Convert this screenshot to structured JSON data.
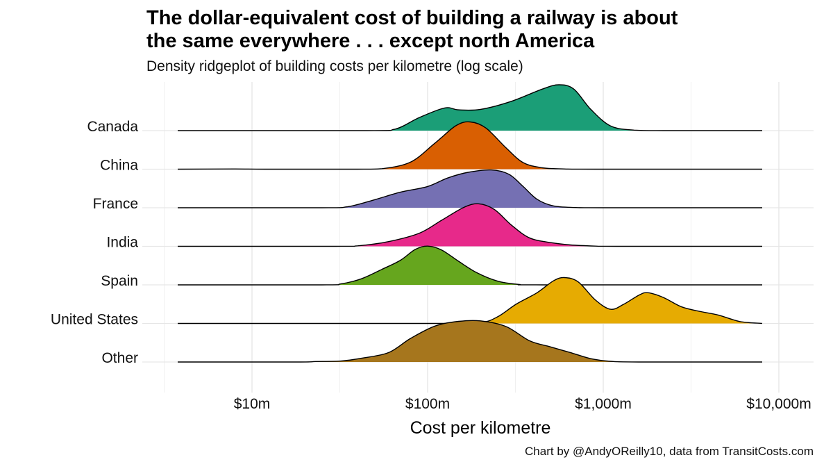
{
  "header": {
    "title_line1": "The dollar-equivalent cost of building a railway is about",
    "title_line2": "the same everywhere . . . except north America",
    "subtitle": "Density ridgeplot of building costs per kilometre (log scale)"
  },
  "caption": "Chart by @AndyOReilly10, data from TransitCosts.com",
  "chart_data": {
    "type": "area",
    "chart_subtype": "density ridgeplot",
    "xlabel": "Cost per kilometre",
    "x_scale": "log10",
    "x_unit": "$ millions per km",
    "xlim": [
      2.7,
      15000
    ],
    "x_ticks": [
      10,
      100,
      1000,
      10000
    ],
    "x_tick_labels": [
      "$10m",
      "$100m",
      "$1,000m",
      "$10,000m"
    ],
    "grid": true,
    "legend": "none",
    "series": [
      {
        "name": "Canada",
        "color": "#1b9e77",
        "points": [
          [
            4,
            0
          ],
          [
            45,
            0
          ],
          [
            65,
            0.03
          ],
          [
            90,
            0.28
          ],
          [
            125,
            0.48
          ],
          [
            150,
            0.44
          ],
          [
            200,
            0.45
          ],
          [
            300,
            0.62
          ],
          [
            450,
            0.88
          ],
          [
            560,
            0.97
          ],
          [
            680,
            0.88
          ],
          [
            850,
            0.45
          ],
          [
            1100,
            0.1
          ],
          [
            1500,
            0.01
          ],
          [
            2200,
            0
          ],
          [
            8000,
            0
          ]
        ]
      },
      {
        "name": "China",
        "color": "#d95f02",
        "points": [
          [
            4,
            0
          ],
          [
            8,
            0.005
          ],
          [
            12,
            0
          ],
          [
            40,
            0
          ],
          [
            55,
            0.01
          ],
          [
            80,
            0.15
          ],
          [
            110,
            0.55
          ],
          [
            145,
            0.92
          ],
          [
            175,
            1.0
          ],
          [
            215,
            0.87
          ],
          [
            280,
            0.45
          ],
          [
            350,
            0.14
          ],
          [
            450,
            0.03
          ],
          [
            600,
            0.005
          ],
          [
            900,
            0
          ],
          [
            8000,
            0
          ]
        ]
      },
      {
        "name": "France",
        "color": "#7570b3",
        "points": [
          [
            4,
            0
          ],
          [
            25,
            0
          ],
          [
            35,
            0.02
          ],
          [
            50,
            0.17
          ],
          [
            70,
            0.33
          ],
          [
            100,
            0.45
          ],
          [
            130,
            0.63
          ],
          [
            170,
            0.75
          ],
          [
            230,
            0.8
          ],
          [
            290,
            0.71
          ],
          [
            350,
            0.45
          ],
          [
            420,
            0.18
          ],
          [
            520,
            0.04
          ],
          [
            700,
            0.005
          ],
          [
            1000,
            0
          ],
          [
            8000,
            0
          ]
        ]
      },
      {
        "name": "India",
        "color": "#e7298a",
        "points": [
          [
            4,
            0
          ],
          [
            30,
            0
          ],
          [
            40,
            0.01
          ],
          [
            60,
            0.1
          ],
          [
            90,
            0.28
          ],
          [
            120,
            0.55
          ],
          [
            160,
            0.82
          ],
          [
            195,
            0.9
          ],
          [
            240,
            0.78
          ],
          [
            300,
            0.45
          ],
          [
            380,
            0.18
          ],
          [
            500,
            0.08
          ],
          [
            650,
            0.03
          ],
          [
            900,
            0.005
          ],
          [
            1200,
            0
          ],
          [
            8000,
            0
          ]
        ]
      },
      {
        "name": "Spain",
        "color": "#66a61e",
        "points": [
          [
            4,
            0
          ],
          [
            25,
            0
          ],
          [
            32,
            0.02
          ],
          [
            42,
            0.13
          ],
          [
            55,
            0.33
          ],
          [
            70,
            0.52
          ],
          [
            85,
            0.75
          ],
          [
            100,
            0.82
          ],
          [
            120,
            0.74
          ],
          [
            150,
            0.5
          ],
          [
            190,
            0.26
          ],
          [
            250,
            0.08
          ],
          [
            330,
            0.01
          ],
          [
            450,
            0
          ],
          [
            8000,
            0
          ]
        ]
      },
      {
        "name": "United States",
        "color": "#e6ab02",
        "points": [
          [
            4,
            0
          ],
          [
            120,
            0
          ],
          [
            200,
            0.02
          ],
          [
            250,
            0.14
          ],
          [
            320,
            0.41
          ],
          [
            420,
            0.65
          ],
          [
            520,
            0.9
          ],
          [
            600,
            0.97
          ],
          [
            720,
            0.88
          ],
          [
            900,
            0.5
          ],
          [
            1100,
            0.3
          ],
          [
            1300,
            0.4
          ],
          [
            1600,
            0.6
          ],
          [
            1800,
            0.65
          ],
          [
            2200,
            0.55
          ],
          [
            2800,
            0.35
          ],
          [
            3600,
            0.25
          ],
          [
            4500,
            0.18
          ],
          [
            6000,
            0.04
          ],
          [
            8000,
            0
          ]
        ]
      },
      {
        "name": "Other",
        "color": "#a6761d",
        "points": [
          [
            4,
            0
          ],
          [
            18,
            0
          ],
          [
            23,
            0.01
          ],
          [
            32,
            0.02
          ],
          [
            42,
            0.08
          ],
          [
            60,
            0.2
          ],
          [
            80,
            0.5
          ],
          [
            110,
            0.76
          ],
          [
            150,
            0.86
          ],
          [
            200,
            0.87
          ],
          [
            280,
            0.75
          ],
          [
            380,
            0.45
          ],
          [
            500,
            0.32
          ],
          [
            650,
            0.2
          ],
          [
            850,
            0.07
          ],
          [
            1100,
            0.015
          ],
          [
            1600,
            0
          ],
          [
            8000,
            0
          ]
        ]
      }
    ]
  }
}
